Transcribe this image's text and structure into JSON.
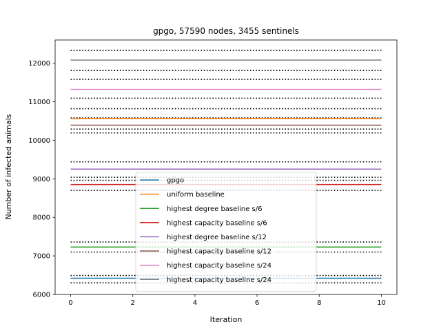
{
  "chart_data": {
    "type": "line",
    "title": "gpgo, 57590 nodes, 3455 sentinels",
    "xlabel": "Iteration",
    "ylabel": "Number of infected animals",
    "xlim": [
      -0.5,
      10.5
    ],
    "ylim": [
      6000,
      12600
    ],
    "xticks": [
      0,
      2,
      4,
      6,
      8,
      10
    ],
    "yticks": [
      6000,
      7000,
      8000,
      9000,
      10000,
      11000,
      12000
    ],
    "legend_position": "lower-center",
    "grid": false,
    "x": [
      0,
      10
    ],
    "series": [
      {
        "name": "gpgo",
        "color": "#1f77b4",
        "value": 6420
      },
      {
        "name": "uniform baseline",
        "color": "#ff7f0e",
        "value": 10560
      },
      {
        "name": "highest degree baseline s/6",
        "color": "#2ca02c",
        "value": 7230
      },
      {
        "name": "highest capacity baseline s/6",
        "color": "#d62728",
        "value": 8850
      },
      {
        "name": "highest degree baseline s/12",
        "color": "#9467bd",
        "value": 9250
      },
      {
        "name": "highest capacity baseline s/12",
        "color": "#8c564b",
        "value": 10390
      },
      {
        "name": "highest capacity baseline s/24",
        "color": "#e377c2",
        "value": 11320
      },
      {
        "name": "highest capacity baseline s/24",
        "color": "#7f7f7f",
        "value": 12080
      }
    ],
    "bounds": [
      6300,
      6490,
      7100,
      7360,
      8700,
      8960,
      9040,
      9440,
      10190,
      10290,
      10580,
      10820,
      11090,
      11580,
      11810,
      12330
    ]
  }
}
